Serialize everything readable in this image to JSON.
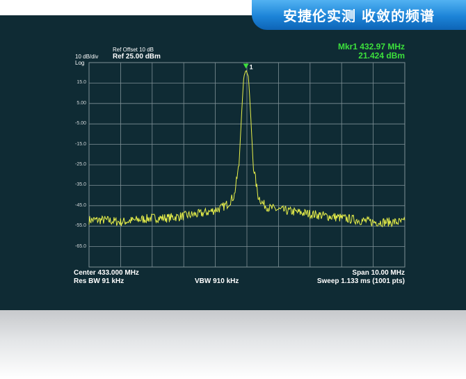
{
  "banner": {
    "title": "安捷伦实测 收敛的频谱"
  },
  "header": {
    "scale": "10 dB/div",
    "log": "Log",
    "ref_offset": "Ref Offset 10 dB",
    "ref_level": "Ref 25.00 dBm"
  },
  "marker": {
    "name": "Mkr1 432.97 MHz",
    "amplitude": "21.424 dBm",
    "label": "1",
    "freq_mhz": 432.97,
    "level_dbm": 21.424
  },
  "footer": {
    "center": "Center 433.000 MHz",
    "span": "Span 10.00 MHz",
    "rbw": "Res BW 91 kHz",
    "vbw": "VBW 910 kHz",
    "sweep": "Sweep  1.133 ms (1001 pts)"
  },
  "colors": {
    "trace": "#e8f04a",
    "marker": "#3ce03c",
    "grid": "#7f9096",
    "background": "#0f2b34"
  },
  "chart_data": {
    "type": "line",
    "ytick_labels": [
      "15.0",
      "5.00",
      "-5.00",
      "-15.0",
      "-25.0",
      "-35.0",
      "-45.0",
      "-55.0",
      "-65.0"
    ],
    "ytick_values": [
      15,
      5,
      -5,
      -15,
      -25,
      -35,
      -45,
      -55,
      -65
    ],
    "ylim": [
      -75,
      25
    ],
    "xlim": [
      428.0,
      438.0
    ],
    "grid": true,
    "series": [
      {
        "x": [
          428.0,
          428.5,
          429.0,
          429.5,
          430.0,
          430.5,
          431.0,
          431.5,
          431.8,
          432.0,
          432.2,
          432.4,
          432.6,
          432.75,
          432.85,
          432.9,
          432.97,
          433.05,
          433.1,
          433.2,
          433.35,
          433.5,
          433.7,
          434.0,
          434.5,
          435.0,
          435.5,
          436.0,
          436.5,
          437.0,
          437.5,
          438.0
        ],
        "y": [
          -52,
          -52,
          -53,
          -52,
          -51,
          -51,
          -50,
          -49,
          -48,
          -47,
          -46,
          -44,
          -40,
          -25,
          5,
          18,
          21.4,
          18,
          5,
          -25,
          -40,
          -44,
          -46,
          -47,
          -48,
          -49,
          -50,
          -51,
          -52,
          -53,
          -53,
          -53
        ]
      }
    ]
  }
}
